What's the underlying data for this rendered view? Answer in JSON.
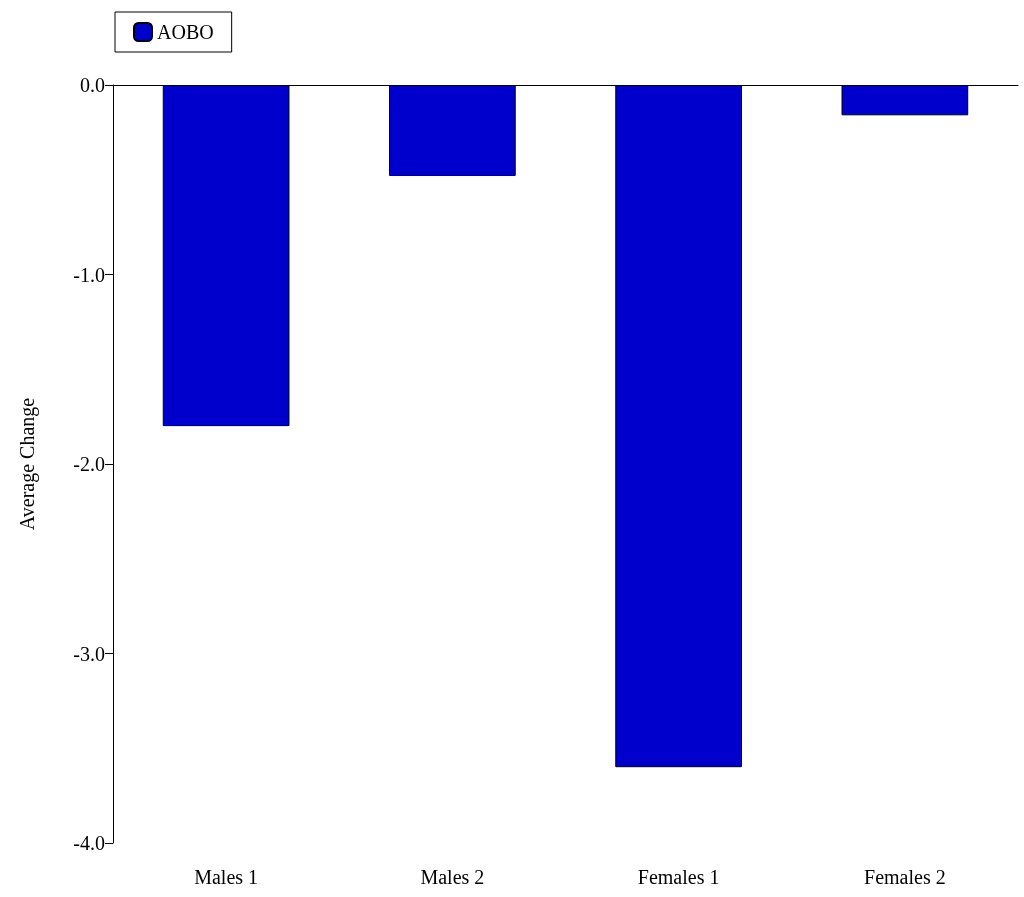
{
  "chart_data": {
    "type": "bar",
    "ylabel": "Average Change",
    "categories": [
      "Males 1",
      "Males 2",
      "Females 1",
      "Females 2"
    ],
    "series": [
      {
        "name": "AOBO",
        "color": "#0000cc",
        "values": [
          -1.8,
          -0.48,
          -3.6,
          -0.16
        ]
      }
    ],
    "ylim": [
      -4,
      0
    ],
    "yticks": [
      {
        "value": -4,
        "label": "-4.0"
      },
      {
        "value": -3,
        "label": "-3.0"
      },
      {
        "value": -2,
        "label": "-2.0"
      },
      {
        "value": -1,
        "label": "-1.0"
      },
      {
        "value": 0,
        "label": "0.0"
      }
    ],
    "grid": false,
    "legend": "top left"
  }
}
